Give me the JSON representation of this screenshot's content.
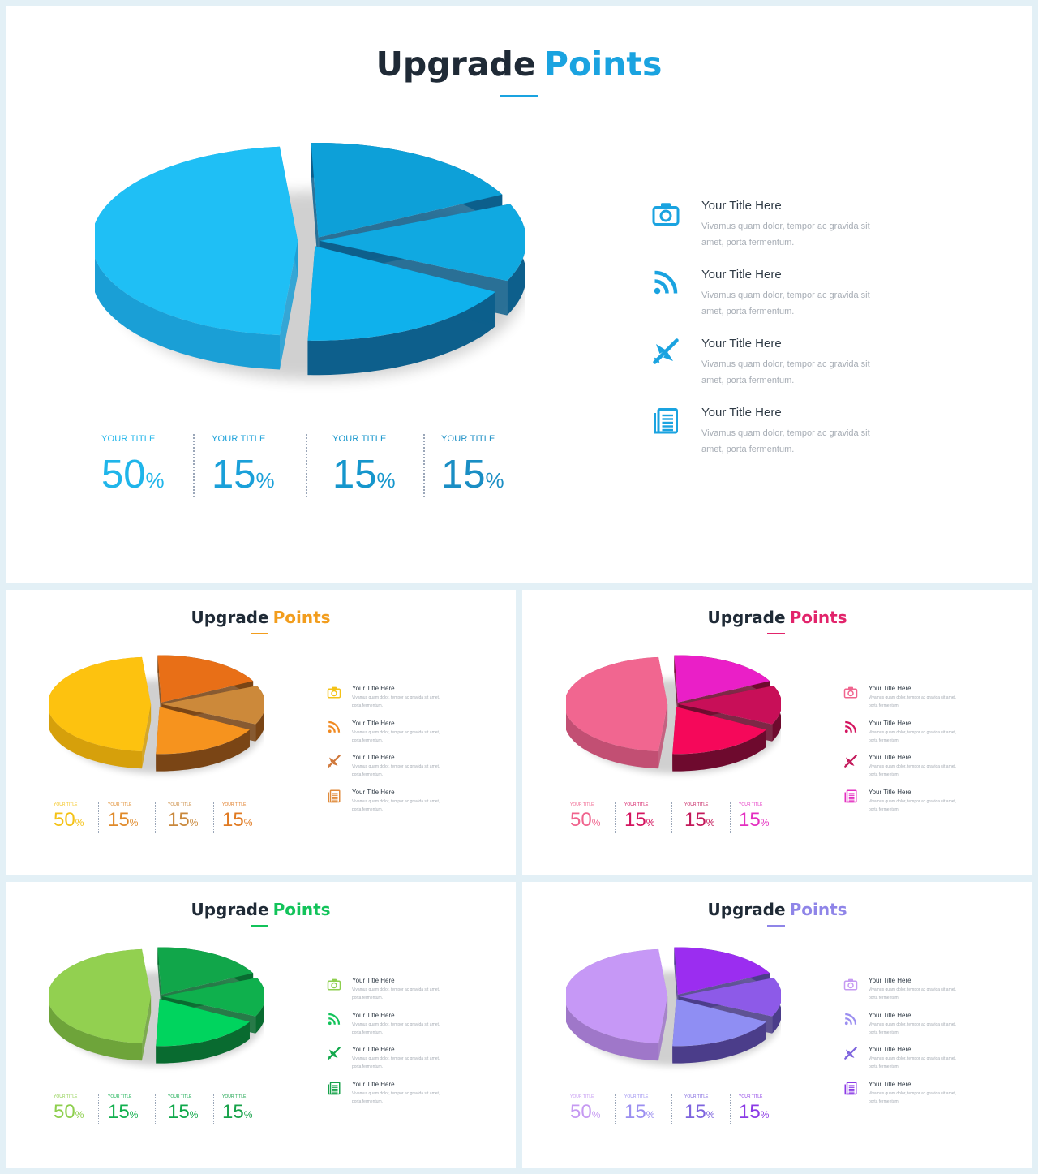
{
  "slides": {
    "main": {
      "title_dark": "Upgrade",
      "title_accent": "Points",
      "accent_color": "#1aa3e0",
      "stats": [
        {
          "label": "YOUR TITLE",
          "value": "50",
          "unit": "%"
        },
        {
          "label": "YOUR TITLE",
          "value": "15",
          "unit": "%"
        },
        {
          "label": "YOUR TITLE",
          "value": "15",
          "unit": "%"
        },
        {
          "label": "YOUR TITLE",
          "value": "15",
          "unit": "%"
        }
      ],
      "features": [
        {
          "icon": "camera-icon",
          "title": "Your Title Here",
          "desc": "Vivamus quam dolor, tempor ac gravida sit amet, porta fermentum."
        },
        {
          "icon": "rss-icon",
          "title": "Your Title Here",
          "desc": "Vivamus quam dolor, tempor ac gravida sit amet, porta fermentum."
        },
        {
          "icon": "airplane-icon",
          "title": "Your Title Here",
          "desc": "Vivamus quam dolor, tempor ac gravida sit amet, porta fermentum."
        },
        {
          "icon": "document-icon",
          "title": "Your Title Here",
          "desc": "Vivamus quam dolor, tempor ac gravida sit amet, porta fermentum."
        }
      ],
      "pie_colors": {
        "big_top": "#1fbff5",
        "big_side": "#1a9fd6",
        "s1_top": "#0da0d8",
        "s2_top": "#10a9e1",
        "s3_top": "#0fb1ec",
        "small_side": "#0d5f8c"
      },
      "stat_colors": [
        "#1fb5ea",
        "#1aa0d9",
        "#1596cc",
        "#1a8ec4"
      ]
    },
    "orange": {
      "title_dark": "Upgrade",
      "title_accent": "Points",
      "accent_color": "#f29d1d",
      "stats": [
        {
          "label": "YOUR TITLE",
          "value": "50",
          "unit": "%"
        },
        {
          "label": "YOUR TITLE",
          "value": "15",
          "unit": "%"
        },
        {
          "label": "YOUR TITLE",
          "value": "15",
          "unit": "%"
        },
        {
          "label": "YOUR TITLE",
          "value": "15",
          "unit": "%"
        }
      ],
      "features": [
        {
          "icon": "camera-icon",
          "title": "Your Title Here",
          "desc": "Vivamus quam dolor, tempor ac gravida sit amet, porta fermentum."
        },
        {
          "icon": "rss-icon",
          "title": "Your Title Here",
          "desc": "Vivamus quam dolor, tempor ac gravida sit amet, porta fermentum."
        },
        {
          "icon": "airplane-icon",
          "title": "Your Title Here",
          "desc": "Vivamus quam dolor, tempor ac gravida sit amet, porta fermentum."
        },
        {
          "icon": "document-icon",
          "title": "Your Title Here",
          "desc": "Vivamus quam dolor, tempor ac gravida sit amet, porta fermentum."
        }
      ],
      "pie_colors": {
        "big_top": "#fdc20f",
        "big_side": "#d6a00b",
        "s1_top": "#e86f17",
        "s2_top": "#cc893a",
        "s3_top": "#f6931e",
        "small_side": "#7a4515"
      },
      "stat_colors": [
        "#f4c217",
        "#e08a2a",
        "#c9883c",
        "#e07a22"
      ],
      "icon_colors": [
        "#f4c217",
        "#f08a22",
        "#d0783a",
        "#e08a3a"
      ]
    },
    "pink": {
      "title_dark": "Upgrade",
      "title_accent": "Points",
      "accent_color": "#e2246b",
      "stats": [
        {
          "label": "YOUR TITLE",
          "value": "50",
          "unit": "%"
        },
        {
          "label": "YOUR TITLE",
          "value": "15",
          "unit": "%"
        },
        {
          "label": "YOUR TITLE",
          "value": "15",
          "unit": "%"
        },
        {
          "label": "YOUR TITLE",
          "value": "15",
          "unit": "%"
        }
      ],
      "features": [
        {
          "icon": "camera-icon",
          "title": "Your Title Here",
          "desc": "Vivamus quam dolor, tempor ac gravida sit amet, porta fermentum."
        },
        {
          "icon": "rss-icon",
          "title": "Your Title Here",
          "desc": "Vivamus quam dolor, tempor ac gravida sit amet, porta fermentum."
        },
        {
          "icon": "airplane-icon",
          "title": "Your Title Here",
          "desc": "Vivamus quam dolor, tempor ac gravida sit amet, porta fermentum."
        },
        {
          "icon": "document-icon",
          "title": "Your Title Here",
          "desc": "Vivamus quam dolor, tempor ac gravida sit amet, porta fermentum."
        }
      ],
      "pie_colors": {
        "big_top": "#f16690",
        "big_side": "#c24f73",
        "s1_top": "#ea1fc7",
        "s2_top": "#c80f58",
        "s3_top": "#f5085a",
        "small_side": "#6e0a2e"
      },
      "stat_colors": [
        "#f0648e",
        "#d4145f",
        "#c3185a",
        "#e42fc0"
      ],
      "icon_colors": [
        "#f0648e",
        "#d4145f",
        "#c3185a",
        "#e42fc0"
      ]
    },
    "green": {
      "title_dark": "Upgrade",
      "title_accent": "Points",
      "accent_color": "#12c35a",
      "stats": [
        {
          "label": "YOUR TITLE",
          "value": "50",
          "unit": "%"
        },
        {
          "label": "YOUR TITLE",
          "value": "15",
          "unit": "%"
        },
        {
          "label": "YOUR TITLE",
          "value": "15",
          "unit": "%"
        },
        {
          "label": "YOUR TITLE",
          "value": "15",
          "unit": "%"
        }
      ],
      "features": [
        {
          "icon": "camera-icon",
          "title": "Your Title Here",
          "desc": "Vivamus quam dolor, tempor ac gravida sit amet, porta fermentum."
        },
        {
          "icon": "rss-icon",
          "title": "Your Title Here",
          "desc": "Vivamus quam dolor, tempor ac gravida sit amet, porta fermentum."
        },
        {
          "icon": "airplane-icon",
          "title": "Your Title Here",
          "desc": "Vivamus quam dolor, tempor ac gravida sit amet, porta fermentum."
        },
        {
          "icon": "document-icon",
          "title": "Your Title Here",
          "desc": "Vivamus quam dolor, tempor ac gravida sit amet, porta fermentum."
        }
      ],
      "pie_colors": {
        "big_top": "#92d050",
        "big_side": "#6ea43a",
        "s1_top": "#11a64a",
        "s2_top": "#0fb04d",
        "s3_top": "#00d45e",
        "small_side": "#096b30"
      },
      "stat_colors": [
        "#8ecf4e",
        "#12b04e",
        "#0fa84a",
        "#17a24a"
      ],
      "icon_colors": [
        "#8ecf4e",
        "#12c35a",
        "#0fa84a",
        "#17a24a"
      ]
    },
    "purple": {
      "title_dark": "Upgrade",
      "title_accent": "Points",
      "accent_color": "#8f85e8",
      "stats": [
        {
          "label": "YOUR TITLE",
          "value": "50",
          "unit": "%"
        },
        {
          "label": "YOUR TITLE",
          "value": "15",
          "unit": "%"
        },
        {
          "label": "YOUR TITLE",
          "value": "15",
          "unit": "%"
        },
        {
          "label": "YOUR TITLE",
          "value": "15",
          "unit": "%"
        }
      ],
      "features": [
        {
          "icon": "camera-icon",
          "title": "Your Title Here",
          "desc": "Vivamus quam dolor, tempor ac gravida sit amet, porta fermentum."
        },
        {
          "icon": "rss-icon",
          "title": "Your Title Here",
          "desc": "Vivamus quam dolor, tempor ac gravida sit amet, porta fermentum."
        },
        {
          "icon": "airplane-icon",
          "title": "Your Title Here",
          "desc": "Vivamus quam dolor, tempor ac gravida sit amet, porta fermentum."
        },
        {
          "icon": "document-icon",
          "title": "Your Title Here",
          "desc": "Vivamus quam dolor, tempor ac gravida sit amet, porta fermentum."
        }
      ],
      "pie_colors": {
        "big_top": "#c698f6",
        "big_side": "#9f77c9",
        "s1_top": "#9b2df0",
        "s2_top": "#8d5ae8",
        "s3_top": "#8f8ef3",
        "small_side": "#4b3d8a"
      },
      "stat_colors": [
        "#c69af2",
        "#9b8ef0",
        "#7d63de",
        "#8b3ae6"
      ],
      "icon_colors": [
        "#c69af2",
        "#9b8ef0",
        "#7d63de",
        "#8b3ae6"
      ]
    }
  }
}
